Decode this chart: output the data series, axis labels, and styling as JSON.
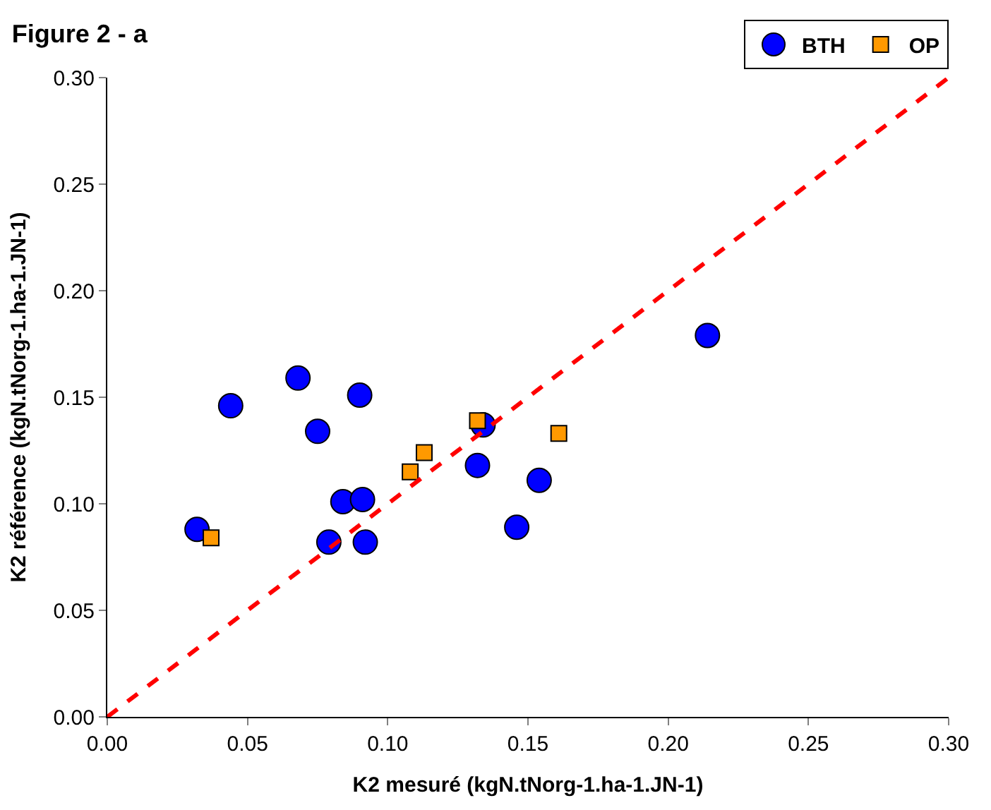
{
  "chart_data": {
    "type": "scatter",
    "title": "Figure 2 - a",
    "xlabel": "K2 mesuré (kgN.tNorg-1.ha-1.JN-1)",
    "ylabel": "K2 référence (kgN.tNorg-1.ha-1.JN-1)",
    "series": [
      {
        "name": "BTH",
        "color": "#0000ff",
        "marker": "circle",
        "x": [
          0.032,
          0.044,
          0.068,
          0.075,
          0.09,
          0.084,
          0.091,
          0.079,
          0.092,
          0.134,
          0.132,
          0.154,
          0.146,
          0.214
        ],
        "values": [
          0.088,
          0.146,
          0.159,
          0.134,
          0.151,
          0.101,
          0.102,
          0.082,
          0.082,
          0.137,
          0.118,
          0.111,
          0.089,
          0.179
        ]
      },
      {
        "name": "OP",
        "color": "#ff9900",
        "marker": "square",
        "x": [
          0.037,
          0.108,
          0.113,
          0.132,
          0.161
        ],
        "values": [
          0.084,
          0.115,
          0.124,
          0.139,
          0.133
        ]
      },
      {
        "type": "line",
        "color": "#ff0000",
        "line_style": "dashed",
        "x": [
          0,
          0.3
        ],
        "values": [
          0,
          0.3
        ]
      }
    ],
    "xlim": [
      0,
      0.3
    ],
    "xticks": [
      {
        "value": 0,
        "label": "0.00"
      },
      {
        "value": 0.05,
        "label": "0.05"
      },
      {
        "value": 0.1,
        "label": "0.10"
      },
      {
        "value": 0.15,
        "label": "0.15"
      },
      {
        "value": 0.2,
        "label": "0.20"
      },
      {
        "value": 0.25,
        "label": "0.25"
      },
      {
        "value": 0.3,
        "label": "0.30"
      }
    ],
    "ylim": [
      0,
      0.3
    ],
    "yticks": [
      {
        "value": 0,
        "label": "0.00"
      },
      {
        "value": 0.05,
        "label": "0.05"
      },
      {
        "value": 0.1,
        "label": "0.10"
      },
      {
        "value": 0.15,
        "label": "0.15"
      },
      {
        "value": 0.2,
        "label": "0.20"
      },
      {
        "value": 0.25,
        "label": "0.25"
      },
      {
        "value": 0.3,
        "label": "0.30"
      }
    ],
    "legend": "top right"
  }
}
